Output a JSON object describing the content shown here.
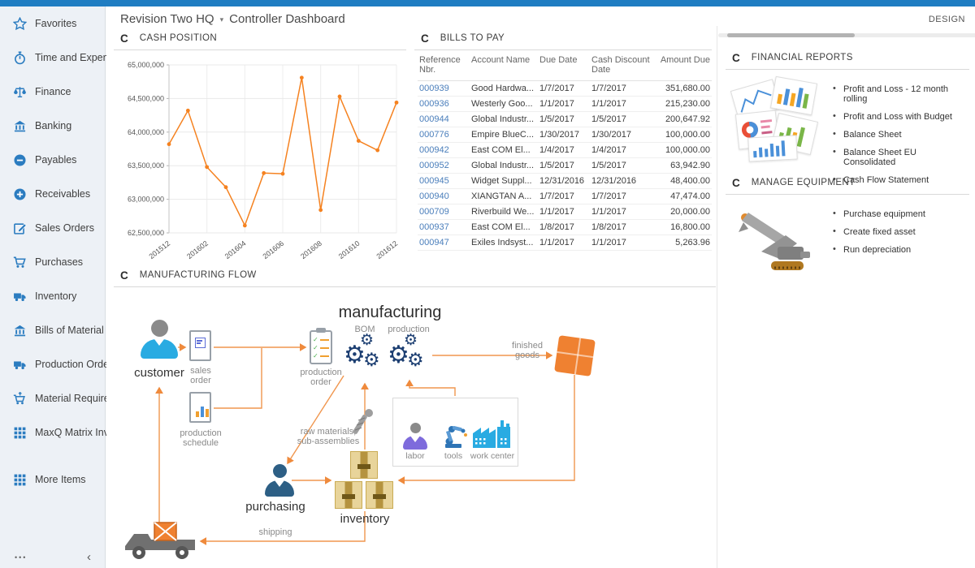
{
  "header": {
    "company": "Revision Two HQ",
    "caret": "▾",
    "page_title": "Controller Dashboard",
    "design_label": "DESIGN"
  },
  "sidebar": {
    "items": [
      {
        "icon": "star",
        "label": "Favorites"
      },
      {
        "icon": "stopwatch",
        "label": "Time and Expenses"
      },
      {
        "icon": "scales",
        "label": "Finance"
      },
      {
        "icon": "bank",
        "label": "Banking"
      },
      {
        "icon": "minus-circle",
        "label": "Payables"
      },
      {
        "icon": "plus-circle",
        "label": "Receivables"
      },
      {
        "icon": "pencil-square",
        "label": "Sales Orders"
      },
      {
        "icon": "cart",
        "label": "Purchases"
      },
      {
        "icon": "truck",
        "label": "Inventory"
      },
      {
        "icon": "bank",
        "label": "Bills of Material"
      },
      {
        "icon": "truck",
        "label": "Production Orders"
      },
      {
        "icon": "cart-plus",
        "label": "Material Requirem..."
      },
      {
        "icon": "grid",
        "label": "MaxQ Matrix Invent..."
      },
      {
        "icon": "grid",
        "label": "More Items"
      }
    ],
    "more_label": "•••",
    "collapse_label": "‹"
  },
  "widgets": {
    "cash_position": {
      "refresh_icon": "C",
      "title": "CASH POSITION"
    },
    "bills_to_pay": {
      "refresh_icon": "C",
      "title": "BILLS TO PAY",
      "columns": [
        "Reference Nbr.",
        "Account Name",
        "Due Date",
        "Cash Discount Date",
        "Amount Due"
      ],
      "rows": [
        {
          "ref": "000939",
          "account": "Good Hardwa...",
          "due": "1/7/2017",
          "discount": "1/7/2017",
          "amount": "351,680.00"
        },
        {
          "ref": "000936",
          "account": "Westerly Goo...",
          "due": "1/1/2017",
          "discount": "1/1/2017",
          "amount": "215,230.00"
        },
        {
          "ref": "000944",
          "account": "Global Industr...",
          "due": "1/5/2017",
          "discount": "1/5/2017",
          "amount": "200,647.92"
        },
        {
          "ref": "000776",
          "account": "Empire BlueC...",
          "due": "1/30/2017",
          "discount": "1/30/2017",
          "amount": "100,000.00"
        },
        {
          "ref": "000942",
          "account": "East COM El...",
          "due": "1/4/2017",
          "discount": "1/4/2017",
          "amount": "100,000.00"
        },
        {
          "ref": "000952",
          "account": "Global Industr...",
          "due": "1/5/2017",
          "discount": "1/5/2017",
          "amount": "63,942.90"
        },
        {
          "ref": "000945",
          "account": "Widget Suppl...",
          "due": "12/31/2016",
          "discount": "12/31/2016",
          "amount": "48,400.00"
        },
        {
          "ref": "000940",
          "account": "XIANGTAN A...",
          "due": "1/7/2017",
          "discount": "1/7/2017",
          "amount": "47,474.00"
        },
        {
          "ref": "000709",
          "account": "Riverbuild We...",
          "due": "1/1/2017",
          "discount": "1/1/2017",
          "amount": "20,000.00"
        },
        {
          "ref": "000937",
          "account": "East COM El...",
          "due": "1/8/2017",
          "discount": "1/8/2017",
          "amount": "16,800.00"
        },
        {
          "ref": "000947",
          "account": "Exiles Indsyst...",
          "due": "1/1/2017",
          "discount": "1/1/2017",
          "amount": "5,263.96"
        }
      ]
    },
    "financial_reports": {
      "refresh_icon": "C",
      "title": "FINANCIAL REPORTS",
      "links": [
        "Profit and Loss - 12 month rolling",
        "Profit and Loss with Budget",
        "Balance Sheet",
        "Balance Sheet EU Consolidated",
        "Cash Flow Statement"
      ]
    },
    "manage_equipment": {
      "refresh_icon": "C",
      "title": "MANAGE EQUIPMENT",
      "links": [
        "Purchase equipment",
        "Create fixed asset",
        "Run depreciation"
      ]
    },
    "manufacturing_flow": {
      "refresh_icon": "C",
      "title": "MANUFACTURING FLOW",
      "labels": {
        "manufacturing": "manufacturing",
        "bom": "BOM",
        "production": "production",
        "customer": "customer",
        "sales_order": "sales order",
        "production_order": "production order",
        "production_schedule": "production schedule",
        "raw_materials": "raw materials, sub-assemblies",
        "labor": "labor",
        "tools": "tools",
        "work_center": "work center",
        "finished_goods": "finished goods",
        "purchasing": "purchasing",
        "inventory": "inventory",
        "shipping": "shipping"
      }
    }
  },
  "chart_data": {
    "type": "line",
    "title": "CASH POSITION",
    "x": [
      "201512",
      "201601",
      "201602",
      "201603",
      "201604",
      "201605",
      "201606",
      "201607",
      "201608",
      "201609",
      "201610",
      "201611",
      "201612"
    ],
    "values": [
      63820000,
      64320000,
      63480000,
      63180000,
      62610000,
      63390000,
      63380000,
      64810000,
      62840000,
      64530000,
      63870000,
      63730000,
      64440000
    ],
    "ylim": [
      62500000,
      65000000
    ],
    "ytick_step": 500000,
    "x_tick_every": 2,
    "line_color": "#f58220",
    "grid": true,
    "legend": "none"
  },
  "colors": {
    "topbar": "#1f7dc2",
    "sidebar_icon": "#2b7cc0",
    "link_blue": "#4a7ebb",
    "arrow_orange": "#ef8a3c",
    "gear_navy": "#1d3f72"
  }
}
